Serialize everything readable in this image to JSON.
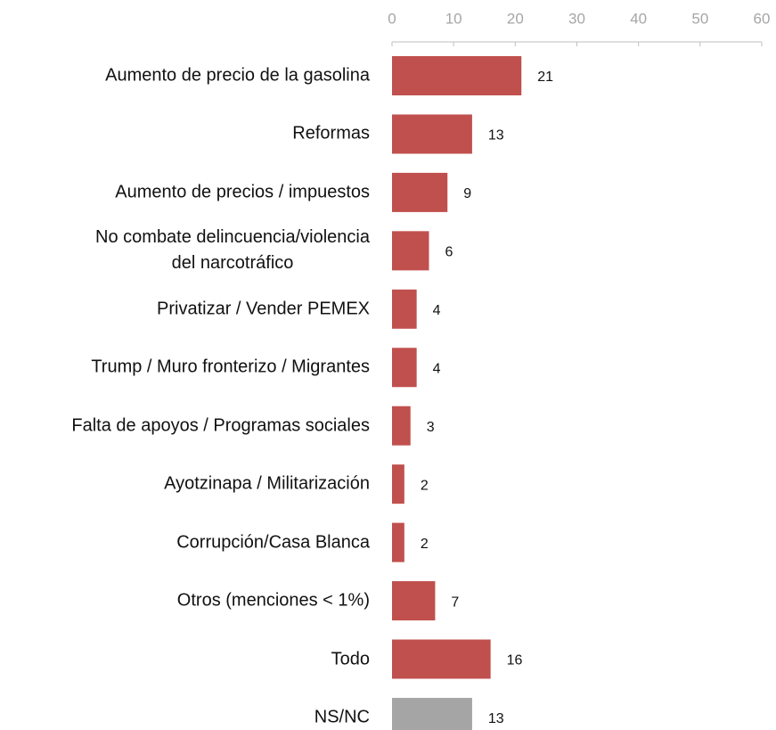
{
  "chart_data": {
    "type": "bar",
    "orientation": "horizontal",
    "categories": [
      "Aumento de precio de la gasolina",
      "Reformas",
      "Aumento de precios / impuestos",
      "No combate delincuencia/violencia\ndel narcotráfico",
      "Privatizar / Vender PEMEX",
      "Trump / Muro fronterizo / Migrantes",
      "Falta de apoyos / Programas sociales",
      "Ayotzinapa / Militarización",
      "Corrupción/Casa Blanca",
      "Otros (menciones < 1%)",
      "Todo",
      "NS/NC"
    ],
    "values": [
      21,
      13,
      9,
      6,
      4,
      4,
      3,
      2,
      2,
      7,
      16,
      13
    ],
    "colors": [
      "#c0504d",
      "#c0504d",
      "#c0504d",
      "#c0504d",
      "#c0504d",
      "#c0504d",
      "#c0504d",
      "#c0504d",
      "#c0504d",
      "#c0504d",
      "#c0504d",
      "#a5a5a5"
    ],
    "xlim": [
      0,
      60
    ],
    "xticks": [
      0,
      10,
      20,
      30,
      40,
      50,
      60
    ],
    "axis_position": "top",
    "grid": false
  }
}
